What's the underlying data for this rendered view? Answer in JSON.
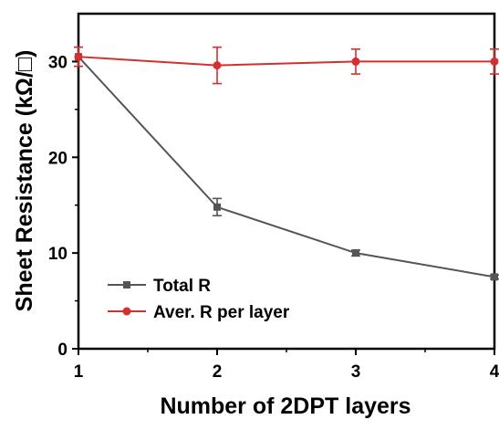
{
  "chart_data": {
    "type": "line",
    "title": "",
    "xlabel": "Number of 2DPT layers",
    "ylabel": "Sheet Resistance (kΩ/□)",
    "x": [
      1,
      2,
      3,
      4
    ],
    "xlim": [
      1,
      4
    ],
    "ylim": [
      0,
      35
    ],
    "xticks": [
      "1",
      "2",
      "3",
      "4"
    ],
    "yticks": [
      "0",
      "10",
      "20",
      "30"
    ],
    "grid": false,
    "legend_position": "bottom-left",
    "series": [
      {
        "name": "Total R",
        "marker": "square",
        "color": "#555555",
        "values": [
          30.5,
          14.8,
          10.0,
          7.5
        ],
        "errors": [
          1.0,
          0.9,
          0.3,
          0.2
        ]
      },
      {
        "name": "Aver. R per layer",
        "marker": "circle",
        "color": "#d62f2f",
        "values": [
          30.5,
          29.6,
          30.0,
          30.0
        ],
        "errors": [
          1.0,
          1.9,
          1.3,
          1.3
        ]
      }
    ]
  }
}
